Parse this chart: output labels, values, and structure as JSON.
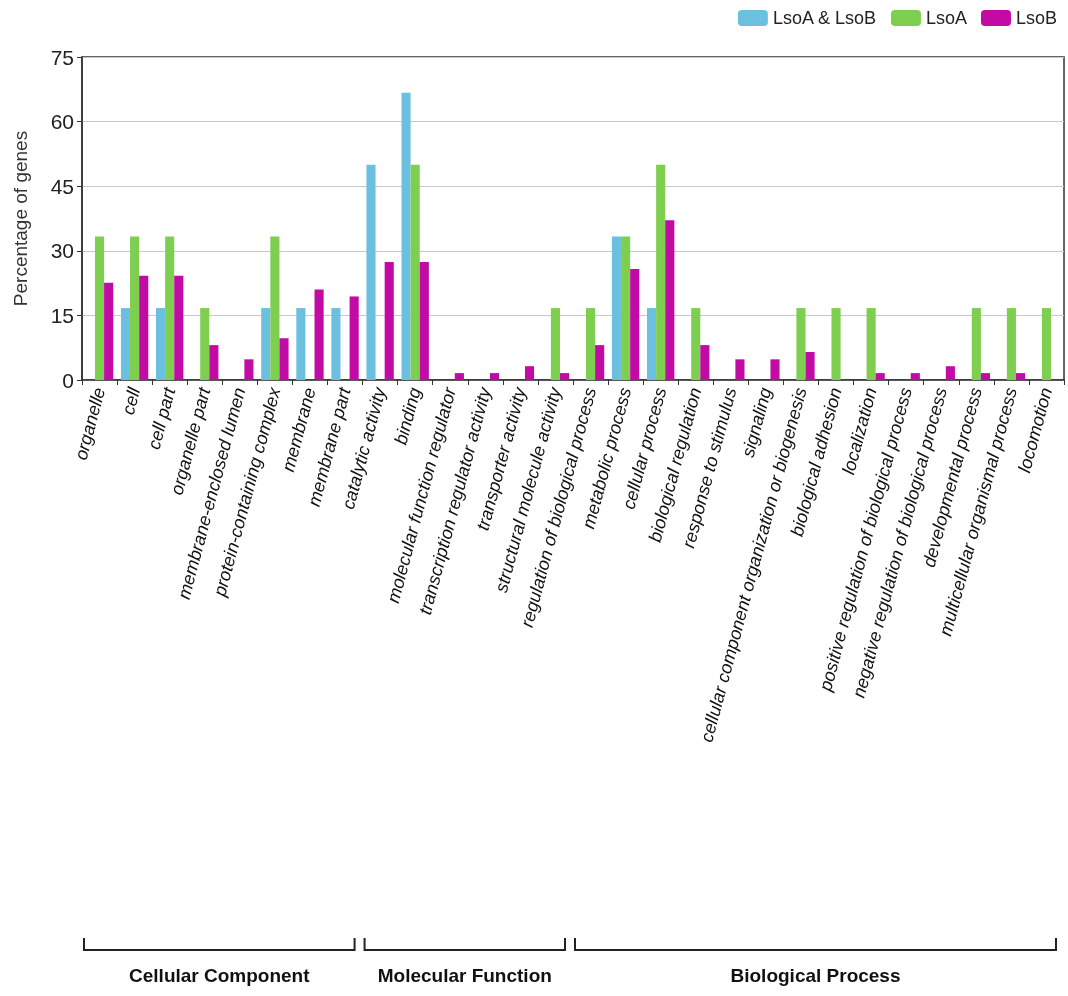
{
  "chart_data": {
    "type": "bar",
    "ylabel": "Percentage of genes",
    "categories": [
      "organelle",
      "cell",
      "cell part",
      "organelle part",
      "membrane-enclosed lumen",
      "protein-containing complex",
      "membrane",
      "membrane part",
      "catalytic activity",
      "binding",
      "molecular function regulator",
      "transcription regulator activity",
      "transporter activity",
      "structural molecule activity",
      "regulation of biological process",
      "metabolic process",
      "cellular process",
      "biological regulation",
      "response to stimulus",
      "signaling",
      "cellular component organization or biogenesis",
      "biological adhesion",
      "localization",
      "positive regulation of biological process",
      "negative regulation of biological process",
      "developmental process",
      "multicellular organismal process",
      "locomotion"
    ],
    "series": [
      {
        "name": "LsoA & LsoB",
        "color": "#6bc0e0",
        "values": [
          0,
          16.7,
          16.7,
          0,
          0,
          16.7,
          16.7,
          16.7,
          50,
          66.7,
          0,
          0,
          0,
          0,
          0,
          33.3,
          16.7,
          0,
          0,
          0,
          0,
          0,
          0,
          0,
          0,
          0,
          0,
          0
        ]
      },
      {
        "name": "LsoA",
        "color": "#7ecf4f",
        "values": [
          33.3,
          33.3,
          33.3,
          16.7,
          0,
          33.3,
          0,
          0,
          0,
          50,
          0,
          0,
          0,
          16.7,
          16.7,
          33.3,
          50,
          16.7,
          0,
          0,
          16.7,
          16.7,
          16.7,
          0,
          0,
          16.7,
          16.7,
          16.7
        ]
      },
      {
        "name": "LsoB",
        "color": "#c20aa5",
        "values": [
          22.6,
          24.2,
          24.2,
          8.1,
          4.8,
          9.7,
          21,
          19.4,
          27.4,
          27.4,
          1.6,
          1.6,
          3.2,
          1.6,
          8.1,
          25.8,
          37.1,
          8.1,
          4.8,
          4.8,
          6.5,
          0,
          1.6,
          1.6,
          3.2,
          1.6,
          1.6,
          0
        ]
      }
    ],
    "ylim": [
      0,
      75
    ],
    "yticks": [
      0,
      15,
      30,
      45,
      60,
      75
    ],
    "grid": "y",
    "legend": "top right",
    "annotations": [
      "Cellular Component",
      "Molecular Function",
      "Biological Process"
    ]
  }
}
